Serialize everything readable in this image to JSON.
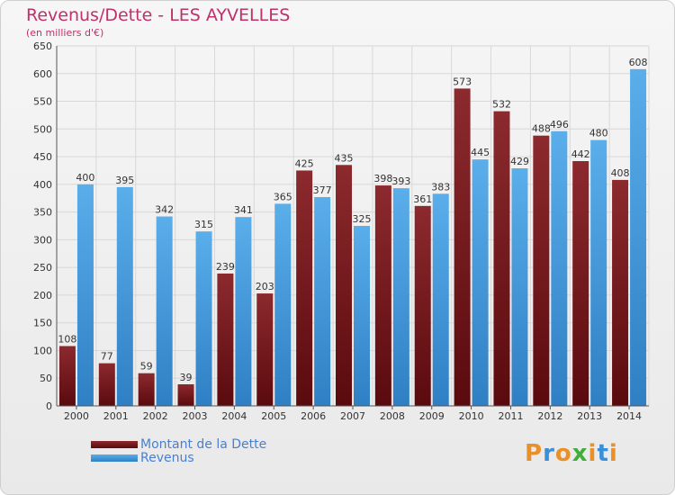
{
  "chart_data": {
    "type": "bar",
    "title": "Revenus/Dette - LES AYVELLES",
    "subtitle": "(en milliers d'€)",
    "categories": [
      "2000",
      "2001",
      "2002",
      "2003",
      "2004",
      "2005",
      "2006",
      "2007",
      "2008",
      "2009",
      "2010",
      "2011",
      "2012",
      "2013",
      "2014"
    ],
    "series": [
      {
        "name": "Montant de la Dette",
        "color": "#7a1a1e",
        "values": [
          108,
          77,
          59,
          39,
          239,
          203,
          425,
          435,
          398,
          361,
          573,
          532,
          488,
          442,
          408
        ]
      },
      {
        "name": "Revenus",
        "color": "#4aa0e0",
        "values": [
          400,
          395,
          342,
          315,
          341,
          365,
          377,
          325,
          393,
          383,
          445,
          429,
          496,
          480,
          608
        ]
      }
    ],
    "ylim": [
      0,
      650
    ],
    "yticks": [
      0,
      50,
      100,
      150,
      200,
      250,
      300,
      350,
      400,
      450,
      500,
      550,
      600,
      650
    ],
    "grid": true,
    "legend_position": "bottom-left"
  },
  "logo": {
    "text": "Proxiti",
    "colors": [
      "#e8902a",
      "#3a8fd8",
      "#e8902a",
      "#3fae3a",
      "#e8902a",
      "#3a8fd8",
      "#e8902a"
    ]
  }
}
